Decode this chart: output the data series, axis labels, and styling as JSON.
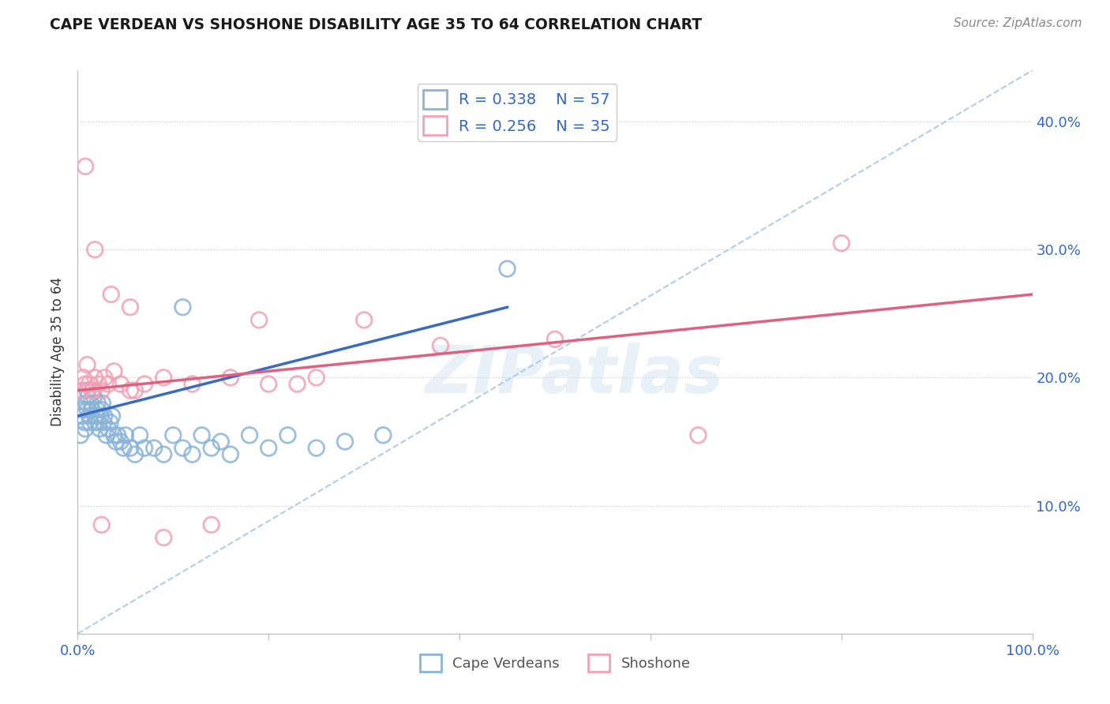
{
  "title": "CAPE VERDEAN VS SHOSHONE DISABILITY AGE 35 TO 64 CORRELATION CHART",
  "source": "Source: ZipAtlas.com",
  "ylabel": "Disability Age 35 to 64",
  "xmin": 0.0,
  "xmax": 1.0,
  "ymin": 0.0,
  "ymax": 0.44,
  "blue_R": 0.338,
  "blue_N": 57,
  "pink_R": 0.256,
  "pink_N": 35,
  "blue_color": "#8ab4d8",
  "pink_color": "#f4a0b5",
  "blue_line_color": "#3a6bbf",
  "pink_line_color": "#e06080",
  "dashed_line_color": "#b0cce8",
  "blue_line_x0": 0.0,
  "blue_line_y0": 0.17,
  "blue_line_x1": 0.45,
  "blue_line_y1": 0.255,
  "pink_line_x0": 0.0,
  "pink_line_x1": 1.0,
  "pink_line_y0": 0.19,
  "pink_line_y1": 0.265,
  "blue_scatter_x": [
    0.003,
    0.005,
    0.006,
    0.007,
    0.008,
    0.009,
    0.01,
    0.01,
    0.011,
    0.012,
    0.013,
    0.014,
    0.015,
    0.016,
    0.017,
    0.018,
    0.019,
    0.02,
    0.021,
    0.022,
    0.023,
    0.024,
    0.025,
    0.026,
    0.027,
    0.028,
    0.03,
    0.032,
    0.034,
    0.036,
    0.038,
    0.04,
    0.042,
    0.045,
    0.048,
    0.05,
    0.055,
    0.06,
    0.065,
    0.07,
    0.08,
    0.09,
    0.1,
    0.11,
    0.12,
    0.13,
    0.14,
    0.15,
    0.16,
    0.18,
    0.2,
    0.22,
    0.25,
    0.28,
    0.32,
    0.45,
    0.11
  ],
  "blue_scatter_y": [
    0.155,
    0.17,
    0.175,
    0.165,
    0.16,
    0.18,
    0.19,
    0.175,
    0.185,
    0.17,
    0.165,
    0.18,
    0.175,
    0.19,
    0.185,
    0.165,
    0.17,
    0.175,
    0.18,
    0.165,
    0.16,
    0.17,
    0.175,
    0.18,
    0.165,
    0.17,
    0.155,
    0.16,
    0.165,
    0.17,
    0.155,
    0.15,
    0.155,
    0.15,
    0.145,
    0.155,
    0.145,
    0.14,
    0.155,
    0.145,
    0.145,
    0.14,
    0.155,
    0.145,
    0.14,
    0.155,
    0.145,
    0.15,
    0.14,
    0.155,
    0.145,
    0.155,
    0.145,
    0.15,
    0.155,
    0.285,
    0.255
  ],
  "pink_scatter_x": [
    0.005,
    0.006,
    0.008,
    0.01,
    0.012,
    0.015,
    0.018,
    0.022,
    0.025,
    0.028,
    0.032,
    0.038,
    0.045,
    0.055,
    0.07,
    0.09,
    0.12,
    0.16,
    0.2,
    0.25,
    0.3,
    0.38,
    0.5,
    0.65,
    0.8,
    0.008,
    0.018,
    0.035,
    0.055,
    0.09,
    0.14,
    0.025,
    0.19,
    0.23,
    0.06
  ],
  "pink_scatter_y": [
    0.19,
    0.2,
    0.195,
    0.21,
    0.195,
    0.19,
    0.2,
    0.195,
    0.19,
    0.2,
    0.195,
    0.205,
    0.195,
    0.19,
    0.195,
    0.2,
    0.195,
    0.2,
    0.195,
    0.2,
    0.245,
    0.225,
    0.23,
    0.155,
    0.305,
    0.365,
    0.3,
    0.265,
    0.255,
    0.075,
    0.085,
    0.085,
    0.245,
    0.195,
    0.19
  ]
}
